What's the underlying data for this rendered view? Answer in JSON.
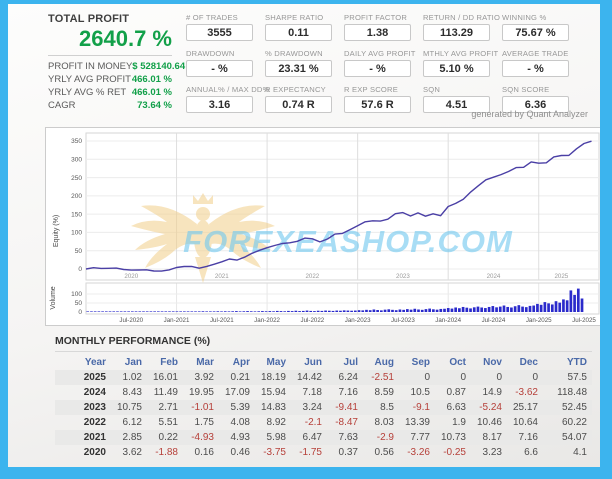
{
  "frame_color": "#3cb4ee",
  "accent_green": "#12a049",
  "summary": {
    "title": "TOTAL PROFIT",
    "total_profit": "2640.7 %",
    "rows": [
      {
        "label": "PROFIT IN MONEY",
        "value": "$ 528140.64"
      },
      {
        "label": "YRLY AVG PROFIT",
        "value": "466.01 %"
      },
      {
        "label": "YRLY AVG % RET",
        "value": "466.01 %"
      },
      {
        "label": "CAGR",
        "value": "73.64 %"
      }
    ]
  },
  "stats": [
    {
      "label": "# OF TRADES",
      "value": "3555"
    },
    {
      "label": "SHARPE RATIO",
      "value": "0.11"
    },
    {
      "label": "PROFIT FACTOR",
      "value": "1.38"
    },
    {
      "label": "RETURN / DD RATIO",
      "value": "113.29"
    },
    {
      "label": "WINNING %",
      "value": "75.67 %"
    },
    {
      "label": "DRAWDOWN",
      "value": "- %"
    },
    {
      "label": "% DRAWDOWN",
      "value": "23.31 %"
    },
    {
      "label": "DAILY AVG PROFIT",
      "value": "- %"
    },
    {
      "label": "MTHLY AVG PROFIT",
      "value": "5.10 %"
    },
    {
      "label": "AVERAGE TRADE",
      "value": "- %"
    },
    {
      "label": "ANNUAL% / MAX DD%",
      "value": "3.16"
    },
    {
      "label": "R EXPECTANCY",
      "value": "0.74 R"
    },
    {
      "label": "R EXP SCORE",
      "value": "57.6 R"
    },
    {
      "label": "SQN",
      "value": "4.51"
    },
    {
      "label": "SQN SCORE",
      "value": "6.36"
    }
  ],
  "generated_by": "generated by Quant Analyzer",
  "chart_data": [
    {
      "type": "line",
      "title": "Equity curve",
      "ylabel": "Equity (%)",
      "yticks": [
        0,
        50,
        100,
        150,
        200,
        250,
        300,
        350
      ],
      "ylim": [
        0,
        350
      ],
      "grid": true,
      "x_start": "Jan-2020",
      "x_end": "Jul-2025",
      "x_year_labels": [
        "2020",
        "2021",
        "2022",
        "2023",
        "2024",
        "2025"
      ],
      "series": [
        {
          "name": "equity",
          "color": "#4a3fa5",
          "monthly_cumulative": [
            0,
            3.62,
            1.74,
            1.9,
            2.36,
            -1.39,
            -3.14,
            -2.77,
            -2.21,
            -5.47,
            -5.72,
            -2.49,
            4.11,
            6.96,
            7.18,
            2.25,
            7.18,
            13.16,
            19.63,
            27.26,
            24.36,
            32.13,
            42.86,
            51.03,
            58.19,
            64.31,
            69.82,
            71.57,
            75.65,
            84.57,
            82.47,
            74.0,
            82.03,
            95.42,
            97.32,
            107.78,
            118.42,
            129.17,
            131.88,
            130.87,
            136.26,
            151.09,
            154.33,
            144.92,
            153.42,
            144.32,
            150.95,
            145.71,
            170.88,
            179.31,
            190.8,
            210.75,
            227.84,
            243.78,
            250.96,
            258.12,
            266.71,
            277.21,
            278.08,
            292.98,
            289.36,
            290.38,
            306.39,
            310.31,
            310.52,
            328.71,
            343.13,
            349.37
          ]
        }
      ],
      "watermark": {
        "text": "FOREXEASHOP.COM",
        "text_color": "#74c9ef",
        "logo": "eagle-crown-logo",
        "logo_color": "#f2cf8a"
      }
    },
    {
      "type": "bar",
      "ylabel": "Volume",
      "yticks": [
        0,
        50,
        100
      ],
      "color": "#2a2acb",
      "xlabels": [
        "Jul-2020",
        "Jan-2021",
        "Jul-2021",
        "Jan-2022",
        "Jul-2022",
        "Jan-2023",
        "Jul-2023",
        "Jan-2024",
        "Jul-2024",
        "Jan-2025",
        "Jul-2025"
      ],
      "values": [
        1,
        2,
        1,
        2,
        2,
        3,
        1,
        2,
        2,
        1,
        2,
        3,
        2,
        1,
        2,
        2,
        3,
        2,
        1,
        2,
        2,
        3,
        2,
        3,
        2,
        3,
        2,
        3,
        3,
        2,
        3,
        4,
        3,
        2,
        3,
        4,
        3,
        4,
        3,
        4,
        5,
        3,
        4,
        5,
        4,
        3,
        4,
        5,
        4,
        5,
        4,
        6,
        5,
        4,
        6,
        5,
        7,
        5,
        6,
        8,
        6,
        5,
        7,
        6,
        8,
        7,
        6,
        8,
        7,
        9,
        8,
        7,
        8,
        10,
        9,
        12,
        10,
        14,
        11,
        9,
        13,
        15,
        12,
        10,
        14,
        12,
        16,
        13,
        18,
        14,
        12,
        16,
        19,
        15,
        13,
        17,
        18,
        22,
        19,
        25,
        21,
        28,
        24,
        20,
        26,
        30,
        25,
        22,
        28,
        33,
        26,
        30,
        36,
        28,
        25,
        32,
        38,
        30,
        27,
        34,
        36,
        45,
        40,
        55,
        48,
        42,
        60,
        52,
        70,
        65,
        120,
        95,
        130,
        75
      ]
    }
  ],
  "monthly_table": {
    "title": "MONTHLY PERFORMANCE (%)",
    "header_color": "#4a69a8",
    "negative_color": "#b6403a",
    "columns": [
      "Year",
      "Jan",
      "Feb",
      "Mar",
      "Apr",
      "May",
      "Jun",
      "Jul",
      "Aug",
      "Sep",
      "Oct",
      "Nov",
      "Dec",
      "YTD"
    ],
    "rows": [
      {
        "year": "2025",
        "values": [
          "1.02",
          "16.01",
          "3.92",
          "0.21",
          "18.19",
          "14.42",
          "6.24",
          "-2.51",
          "0",
          "0",
          "0",
          "0",
          "57.5"
        ]
      },
      {
        "year": "2024",
        "values": [
          "8.43",
          "11.49",
          "19.95",
          "17.09",
          "15.94",
          "7.18",
          "7.16",
          "8.59",
          "10.5",
          "0.87",
          "14.9",
          "-3.62",
          "118.48"
        ]
      },
      {
        "year": "2023",
        "values": [
          "10.75",
          "2.71",
          "-1.01",
          "5.39",
          "14.83",
          "3.24",
          "-9.41",
          "8.5",
          "-9.1",
          "6.63",
          "-5.24",
          "25.17",
          "52.45"
        ]
      },
      {
        "year": "2022",
        "values": [
          "6.12",
          "5.51",
          "1.75",
          "4.08",
          "8.92",
          "-2.1",
          "-8.47",
          "8.03",
          "13.39",
          "1.9",
          "10.46",
          "10.64",
          "60.22"
        ]
      },
      {
        "year": "2021",
        "values": [
          "2.85",
          "0.22",
          "-4.93",
          "4.93",
          "5.98",
          "6.47",
          "7.63",
          "-2.9",
          "7.77",
          "10.73",
          "8.17",
          "7.16",
          "54.07"
        ]
      },
      {
        "year": "2020",
        "values": [
          "3.62",
          "-1.88",
          "0.16",
          "0.46",
          "-3.75",
          "-1.75",
          "0.37",
          "0.56",
          "-3.26",
          "-0.25",
          "3.23",
          "6.6",
          "4.1"
        ]
      }
    ]
  }
}
